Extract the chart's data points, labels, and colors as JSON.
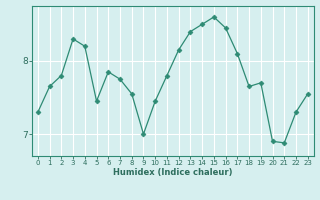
{
  "xlabel": "Humidex (Indice chaleur)",
  "ylabel": "",
  "x": [
    0,
    1,
    2,
    3,
    4,
    5,
    6,
    7,
    8,
    9,
    10,
    11,
    12,
    13,
    14,
    15,
    16,
    17,
    18,
    19,
    20,
    21,
    22,
    23
  ],
  "y": [
    7.3,
    7.65,
    7.8,
    8.3,
    8.2,
    7.45,
    7.85,
    7.75,
    7.55,
    7.0,
    7.45,
    7.8,
    8.15,
    8.4,
    8.5,
    8.6,
    8.45,
    8.1,
    7.65,
    7.7,
    6.9,
    6.88,
    7.3,
    7.55
  ],
  "line_color": "#2e8b74",
  "marker": "D",
  "marker_size": 2.5,
  "bg_color": "#d6efef",
  "grid_color": "#ffffff",
  "axis_color": "#2e8b74",
  "tick_color": "#2e6e5e",
  "ylim": [
    6.7,
    8.75
  ],
  "yticks": [
    7,
    8
  ],
  "xticks": [
    0,
    1,
    2,
    3,
    4,
    5,
    6,
    7,
    8,
    9,
    10,
    11,
    12,
    13,
    14,
    15,
    16,
    17,
    18,
    19,
    20,
    21,
    22,
    23
  ]
}
